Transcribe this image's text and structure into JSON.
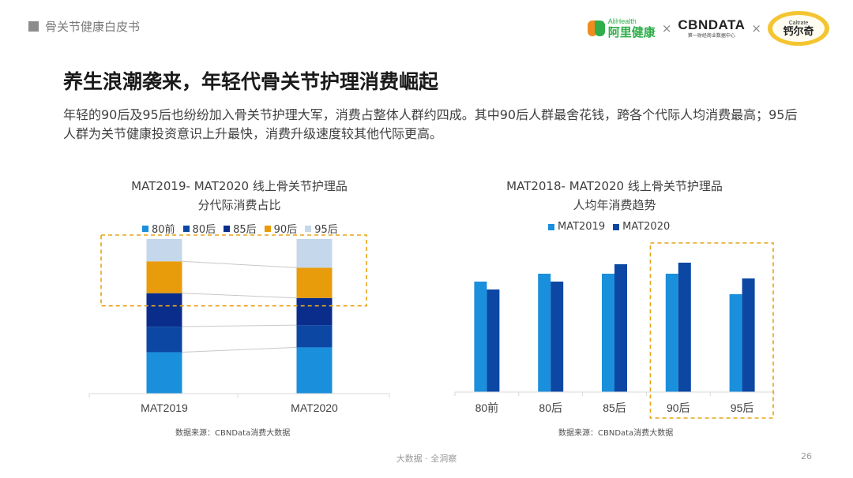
{
  "header": {
    "report_title": "骨关节健康白皮书",
    "logos": {
      "alihealth_en": "AliHealth",
      "alihealth_cn": "阿里健康",
      "separator": "×",
      "cbndata_main": "CBNDATA",
      "cbndata_sub": "第一财经商业数据中心",
      "caltrate_en": "Caltrate",
      "caltrate_cn": "钙尔奇"
    }
  },
  "title": "养生浪潮袭来，年轻代骨关节护理消费崛起",
  "description": "年轻的90后及95后也纷纷加入骨关节护理大军，消费占整体人群约四成。其中90后人群最舍花钱，跨各个代际人均消费最高；95后人群为关节健康投资意识上升最快，消费升级速度较其他代际更高。",
  "colors": {
    "80前": "#1a8fdc",
    "80后": "#0c47a3",
    "85后": "#0a2d8c",
    "90后": "#e89c0c",
    "95后": "#c4d7eb",
    "MAT2019": "#1a8fdc",
    "MAT2020": "#0c47a3",
    "highlight_border": "#e8a317"
  },
  "footer": {
    "center": "大数据 · 全洞察",
    "page": "26"
  },
  "chart_data": [
    {
      "type": "bar",
      "stacked": true,
      "percent_stacked": true,
      "title_line1": "MAT2019- MAT2020 线上骨关节护理品",
      "title_line2": "分代际消费占比",
      "categories": [
        "MAT2019",
        "MAT2020"
      ],
      "series": [
        {
          "name": "80前",
          "values": [
            26,
            29
          ]
        },
        {
          "name": "80后",
          "values": [
            16,
            14
          ]
        },
        {
          "name": "85后",
          "values": [
            21,
            17
          ]
        },
        {
          "name": "90后",
          "values": [
            20,
            19
          ]
        },
        {
          "name": "95后",
          "values": [
            14,
            18
          ]
        }
      ],
      "ylim": [
        0,
        100
      ],
      "legend_position": "top",
      "grid": false,
      "source": "数据来源：CBNData消费大数据"
    },
    {
      "type": "bar",
      "title_line1": "MAT2018- MAT2020 线上骨关节护理品",
      "title_line2": "人均年消费趋势",
      "categories": [
        "80前",
        "80后",
        "85后",
        "90后",
        "95后"
      ],
      "series": [
        {
          "name": "MAT2019",
          "values": [
            70,
            75,
            75,
            75,
            62
          ]
        },
        {
          "name": "MAT2020",
          "values": [
            65,
            70,
            81,
            82,
            72
          ]
        }
      ],
      "ylim": [
        0,
        100
      ],
      "legend_position": "top",
      "grid": false,
      "highlighted_categories": [
        "90后",
        "95后"
      ],
      "source": "数据来源：CBNData消费大数据"
    }
  ]
}
